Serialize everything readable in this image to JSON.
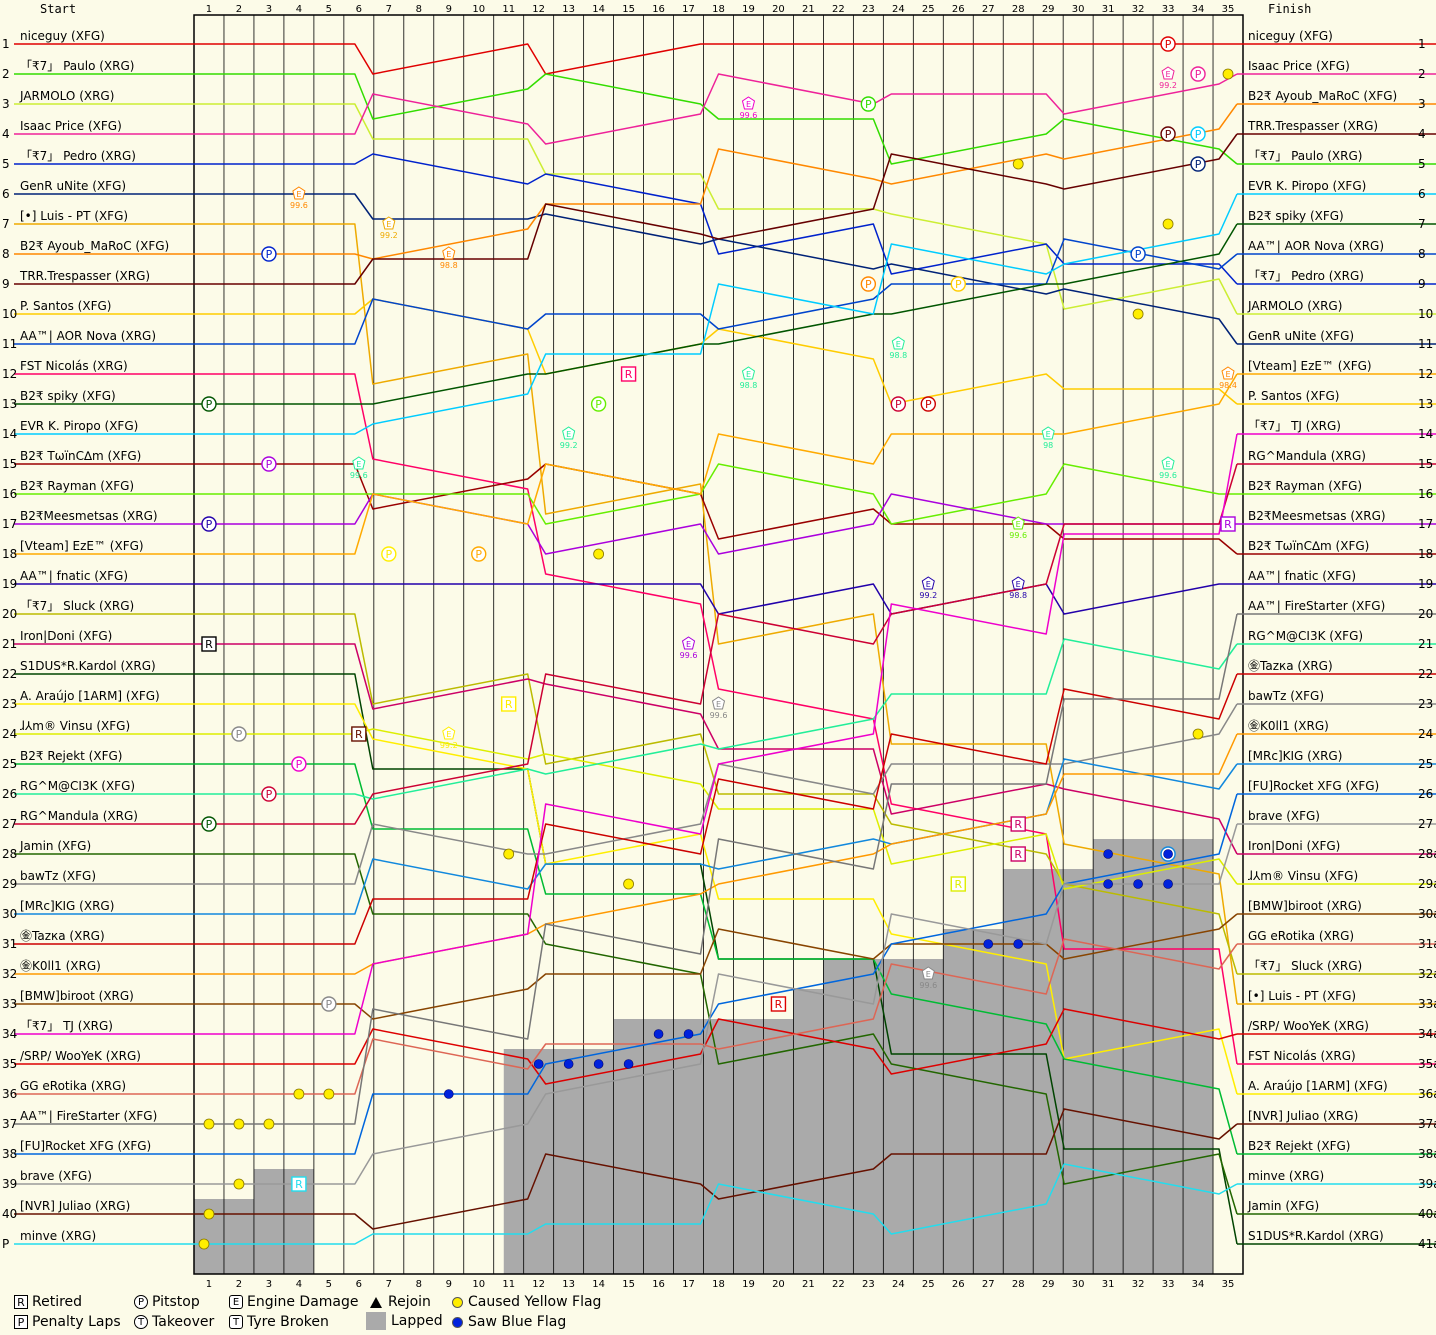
{
  "header": {
    "start_label": "Start",
    "finish_label": "Finish"
  },
  "chart_data": {
    "type": "line",
    "title": "",
    "xlabel": "",
    "ylabel": "",
    "laps": [
      1,
      2,
      3,
      4,
      5,
      6,
      7,
      8,
      9,
      10,
      11,
      12,
      13,
      14,
      15,
      16,
      17,
      18,
      19,
      20,
      21,
      22,
      23,
      24,
      25,
      26,
      27,
      28,
      29,
      30,
      31,
      32,
      33,
      34,
      35
    ],
    "positions": [
      "1",
      "2",
      "3",
      "4",
      "5",
      "6",
      "7",
      "8",
      "9",
      "10",
      "11",
      "12",
      "13",
      "14",
      "15",
      "16",
      "17",
      "18",
      "19",
      "20",
      "21",
      "22",
      "23",
      "24",
      "25",
      "26",
      "27",
      "28",
      "29",
      "30",
      "31",
      "32",
      "33",
      "34",
      "35",
      "36",
      "37",
      "38",
      "39",
      "40",
      "P"
    ],
    "finish_positions": [
      "1",
      "2",
      "3",
      "4",
      "5",
      "6",
      "7",
      "8",
      "9",
      "10",
      "11",
      "12",
      "13",
      "14",
      "15",
      "16",
      "17",
      "18",
      "19",
      "20",
      "21",
      "22",
      "23",
      "24",
      "25",
      "26",
      "27",
      "28a",
      "29a",
      "30a",
      "31a",
      "32a",
      "33a",
      "34a",
      "35a",
      "36a",
      "37a",
      "38a",
      "39a",
      "40a",
      "41a"
    ],
    "ylim": [
      1,
      41
    ],
    "start_grid": [
      {
        "name": "niceguy (XFG)",
        "color": "#e00000"
      },
      {
        "name": "「₹7」 Paulo (XRG)",
        "color": "#33dd00"
      },
      {
        "name": "JARMOLO (XRG)",
        "color": "#ccee33"
      },
      {
        "name": "Isaac Price (XFG)",
        "color": "#ee2299"
      },
      {
        "name": "「₹7」 Pedro (XRG)",
        "color": "#0022cc"
      },
      {
        "name": "GenR uNite (XFG)",
        "color": "#002277"
      },
      {
        "name": "[•] Luis - PT (XFG)",
        "color": "#eeaa00"
      },
      {
        "name": "B2₹ Ayoub_MaRoC (XFG)",
        "color": "#ff8800"
      },
      {
        "name": "TRR.Trespasser (XRG)",
        "color": "#660000"
      },
      {
        "name": "P. Santos (XFG)",
        "color": "#ffcc00"
      },
      {
        "name": "AA™| AOR Nova (XRG)",
        "color": "#0044cc"
      },
      {
        "name": "FST Nicolás (XRG)",
        "color": "#ff0066"
      },
      {
        "name": "B2₹ spiky (XFG)",
        "color": "#005500"
      },
      {
        "name": "EVR K. Piropo (XFG)",
        "color": "#00ccff"
      },
      {
        "name": "B2₹ TωïnC∆m (XFG)",
        "color": "#990000"
      },
      {
        "name": "B2₹ Rayman (XFG)",
        "color": "#66ee00"
      },
      {
        "name": "B2₹Meesmetsas (XRG)",
        "color": "#aa00dd"
      },
      {
        "name": "[Vteam] EzE™ (XFG)",
        "color": "#ffaa00"
      },
      {
        "name": "AA™| fnatic (XFG)",
        "color": "#2200aa"
      },
      {
        "name": "「₹7」 Sluck (XRG)",
        "color": "#bbbb00"
      },
      {
        "name": "Iron|Doni (XFG)",
        "color": "#cc0066"
      },
      {
        "name": "S1DUS*R.Kardol (XRG)",
        "color": "#004400"
      },
      {
        "name": "A. Araújo [1ARM] (XFG)",
        "color": "#ffee00"
      },
      {
        "name": "ɺ⅄m® Vinsu (XFG)",
        "color": "#ddee00"
      },
      {
        "name": "B2₹ Rejekt (XFG)",
        "color": "#00bb33"
      },
      {
        "name": "RG^M@CI3K (XFG)",
        "color": "#22ee99"
      },
      {
        "name": "RG^Mandula (XRG)",
        "color": "#cc0033"
      },
      {
        "name": "Jamin (XFG)",
        "color": "#226600"
      },
      {
        "name": "bawTz (XFG)",
        "color": "#888888"
      },
      {
        "name": "[MRc]KIG (XRG)",
        "color": "#1188dd"
      },
      {
        "name": "㊎Tazкa (XRG)",
        "color": "#cc0000"
      },
      {
        "name": "㊎K0ll1 (XRG)",
        "color": "#ff9900"
      },
      {
        "name": "[BMW]biroot (XRG)",
        "color": "#884400"
      },
      {
        "name": "「₹7」 TJ (XRG)",
        "color": "#ee00cc"
      },
      {
        "name": "/SRP/ WooYeK (XRG)",
        "color": "#dd0000"
      },
      {
        "name": "GG eRotika (XRG)",
        "color": "#dd6655"
      },
      {
        "name": "AA™| FireStarter (XFG)",
        "color": "#777777"
      },
      {
        "name": "[FU]Rocket XFG (XFG)",
        "color": "#0066dd"
      },
      {
        "name": "brave (XFG)",
        "color": "#999999"
      },
      {
        "name": "[NVR] Juliao (XRG)",
        "color": "#661100"
      },
      {
        "name": "minve (XRG)",
        "color": "#22ddee"
      }
    ],
    "finish_order": [
      {
        "name": "niceguy (XFG)",
        "color": "#e00000"
      },
      {
        "name": "Isaac Price (XFG)",
        "color": "#ee2299"
      },
      {
        "name": "B2₹ Ayoub_MaRoC (XFG)",
        "color": "#ff8800"
      },
      {
        "name": "TRR.Trespasser (XRG)",
        "color": "#660000"
      },
      {
        "name": "「₹7」 Paulo (XRG)",
        "color": "#33dd00"
      },
      {
        "name": "EVR K. Piropo (XFG)",
        "color": "#00ccff"
      },
      {
        "name": "B2₹ spiky (XFG)",
        "color": "#005500"
      },
      {
        "name": "AA™| AOR Nova (XRG)",
        "color": "#0044cc"
      },
      {
        "name": "「₹7」 Pedro (XRG)",
        "color": "#0022cc"
      },
      {
        "name": "JARMOLO (XRG)",
        "color": "#ccee33"
      },
      {
        "name": "GenR uNite (XFG)",
        "color": "#002277"
      },
      {
        "name": "[Vteam] EzE™ (XFG)",
        "color": "#ffaa00"
      },
      {
        "name": "P. Santos (XFG)",
        "color": "#ffcc00"
      },
      {
        "name": "「₹7」 TJ (XRG)",
        "color": "#ee00cc"
      },
      {
        "name": "RG^Mandula (XRG)",
        "color": "#cc0033"
      },
      {
        "name": "B2₹ Rayman (XFG)",
        "color": "#66ee00"
      },
      {
        "name": "B2₹Meesmetsas (XRG)",
        "color": "#aa00dd"
      },
      {
        "name": "B2₹ TωïnC∆m (XFG)",
        "color": "#990000"
      },
      {
        "name": "AA™| fnatic (XFG)",
        "color": "#2200aa"
      },
      {
        "name": "AA™| FireStarter (XFG)",
        "color": "#777777"
      },
      {
        "name": "RG^M@CI3K (XFG)",
        "color": "#22ee99"
      },
      {
        "name": "㊎Tazкa (XRG)",
        "color": "#cc0000"
      },
      {
        "name": "bawTz (XFG)",
        "color": "#888888"
      },
      {
        "name": "㊎K0ll1 (XRG)",
        "color": "#ff9900"
      },
      {
        "name": "[MRc]KIG (XRG)",
        "color": "#1188dd"
      },
      {
        "name": "[FU]Rocket XFG (XFG)",
        "color": "#0066dd"
      },
      {
        "name": "brave (XFG)",
        "color": "#999999"
      },
      {
        "name": "Iron|Doni (XFG)",
        "color": "#cc0066"
      },
      {
        "name": "ɺ⅄m® Vinsu (XFG)",
        "color": "#ddee00"
      },
      {
        "name": "[BMW]biroot (XRG)",
        "color": "#884400"
      },
      {
        "name": "GG eRotika (XRG)",
        "color": "#dd6655"
      },
      {
        "name": "「₹7」 Sluck (XRG)",
        "color": "#bbbb00"
      },
      {
        "name": "[•] Luis - PT (XFG)",
        "color": "#eeaa00"
      },
      {
        "name": "/SRP/ WooYeK (XRG)",
        "color": "#dd0000"
      },
      {
        "name": "FST Nicolás (XRG)",
        "color": "#ff0066"
      },
      {
        "name": "A. Araújo [1ARM] (XFG)",
        "color": "#ffee00"
      },
      {
        "name": "[NVR] Juliao (XRG)",
        "color": "#661100"
      },
      {
        "name": "B2₹ Rejekt (XFG)",
        "color": "#00bb33"
      },
      {
        "name": "minve (XRG)",
        "color": "#22ddee"
      },
      {
        "name": "Jamin (XFG)",
        "color": "#226600"
      },
      {
        "name": "S1DUS*R.Kardol (XRG)",
        "color": "#004400"
      }
    ],
    "lapped_profile": [
      {
        "lap": 1,
        "first_lapped_position": 40
      },
      {
        "lap": 2,
        "first_lapped_position": 40
      },
      {
        "lap": 3,
        "first_lapped_position": 39
      },
      {
        "lap": 4,
        "first_lapped_position": 39
      },
      {
        "lap": 9,
        "first_lapped_position": 36
      },
      {
        "lap": 10,
        "first_lapped_position": 36
      },
      {
        "lap": 11,
        "first_lapped_position": 35
      },
      {
        "lap": 14,
        "first_lapped_position": 35
      },
      {
        "lap": 15,
        "first_lapped_position": 34
      },
      {
        "lap": 20,
        "first_lapped_position": 34
      },
      {
        "lap": 21,
        "first_lapped_position": 33
      },
      {
        "lap": 22,
        "first_lapped_position": 32
      },
      {
        "lap": 25,
        "first_lapped_position": 32
      },
      {
        "lap": 26,
        "first_lapped_position": 31
      },
      {
        "lap": 27,
        "first_lapped_position": 31
      },
      {
        "lap": 28,
        "first_lapped_position": 29
      },
      {
        "lap": 30,
        "first_lapped_position": 29
      },
      {
        "lap": 31,
        "first_lapped_position": 28
      },
      {
        "lap": 34,
        "first_lapped_position": 28
      }
    ],
    "events": [
      {
        "type": "pitstop",
        "lap": 33,
        "pos": 1,
        "color": "#e00000"
      },
      {
        "type": "pitstop",
        "lap": 34,
        "pos": 2,
        "color": "#ee2299"
      },
      {
        "type": "pitstop",
        "lap": 23,
        "pos": 3,
        "color": "#33dd00"
      },
      {
        "type": "pitstop",
        "lap": 33,
        "pos": 4,
        "color": "#660000"
      },
      {
        "type": "pitstop",
        "lap": 34,
        "pos": 4,
        "color": "#00ccff"
      },
      {
        "type": "pitstop",
        "lap": 34,
        "pos": 5,
        "color": "#002277"
      },
      {
        "type": "pitstop",
        "lap": 3,
        "pos": 8,
        "color": "#0022cc"
      },
      {
        "type": "pitstop",
        "lap": 32,
        "pos": 8,
        "color": "#0044cc"
      },
      {
        "type": "pitstop",
        "lap": 23,
        "pos": 9,
        "color": "#ff8800"
      },
      {
        "type": "pitstop",
        "lap": 26,
        "pos": 9,
        "color": "#ffcc00"
      },
      {
        "type": "pitstop",
        "lap": 1,
        "pos": 13,
        "color": "#005500"
      },
      {
        "type": "pitstop",
        "lap": 14,
        "pos": 13,
        "color": "#66ee00"
      },
      {
        "type": "pitstop",
        "lap": 24,
        "pos": 13,
        "color": "#cc0033"
      },
      {
        "type": "pitstop",
        "lap": 25,
        "pos": 13,
        "color": "#cc0000"
      },
      {
        "type": "pitstop",
        "lap": 3,
        "pos": 15,
        "color": "#aa00dd"
      },
      {
        "type": "pitstop",
        "lap": 1,
        "pos": 17,
        "color": "#2200aa"
      },
      {
        "type": "pitstop",
        "lap": 7,
        "pos": 18,
        "color": "#ffee00"
      },
      {
        "type": "pitstop",
        "lap": 10,
        "pos": 18,
        "color": "#ffaa00"
      },
      {
        "type": "pitstop",
        "lap": 2,
        "pos": 24,
        "color": "#888888"
      },
      {
        "type": "pitstop",
        "lap": 4,
        "pos": 25,
        "color": "#ee00cc"
      },
      {
        "type": "pitstop",
        "lap": 3,
        "pos": 26,
        "color": "#cc0033"
      },
      {
        "type": "pitstop",
        "lap": 1,
        "pos": 27,
        "color": "#005500"
      },
      {
        "type": "pitstop",
        "lap": 5,
        "pos": 33,
        "color": "#888888"
      },
      {
        "type": "pitstop",
        "lap": 33,
        "pos": 28,
        "color": "#1188dd"
      },
      {
        "type": "retired",
        "lap": 1,
        "pos": 21,
        "color": "#000000"
      },
      {
        "type": "retired",
        "lap": 15,
        "pos": 12,
        "color": "#ff0066"
      },
      {
        "type": "retired",
        "lap": 6,
        "pos": 24,
        "color": "#661100"
      },
      {
        "type": "retired",
        "lap": 11,
        "pos": 23,
        "color": "#ffee00"
      },
      {
        "type": "retired",
        "lap": 20,
        "pos": 33,
        "color": "#dd0000"
      },
      {
        "type": "retired",
        "lap": 28,
        "pos": 27,
        "color": "#cc0066"
      },
      {
        "type": "retired",
        "lap": 28,
        "pos": 28,
        "color": "#cc0066"
      },
      {
        "type": "retired",
        "lap": 26,
        "pos": 29,
        "color": "#ddee00"
      },
      {
        "type": "retired",
        "lap": 35,
        "pos": 17,
        "color": "#aa00dd"
      },
      {
        "type": "retired",
        "lap": 4,
        "pos": 39,
        "color": "#22ddee"
      },
      {
        "type": "engine",
        "lap": 4,
        "pos": 6,
        "label": "99.6",
        "color": "#ff8800"
      },
      {
        "type": "engine",
        "lap": 7,
        "pos": 7,
        "label": "99.2",
        "color": "#eeaa00"
      },
      {
        "type": "engine",
        "lap": 9,
        "pos": 8,
        "label": "98.8",
        "color": "#ff8800"
      },
      {
        "type": "engine",
        "lap": 19,
        "pos": 3,
        "label": "99.6",
        "color": "#ee00cc"
      },
      {
        "type": "engine",
        "lap": 33,
        "pos": 2,
        "label": "99.2",
        "color": "#ee2299"
      },
      {
        "type": "engine",
        "lap": 24,
        "pos": 11,
        "label": "98.8",
        "color": "#22ee99"
      },
      {
        "type": "engine",
        "lap": 19,
        "pos": 12,
        "label": "98.8",
        "color": "#22ee99"
      },
      {
        "type": "engine",
        "lap": 35,
        "pos": 12,
        "label": "98.4",
        "color": "#ff8800"
      },
      {
        "type": "engine",
        "lap": 13,
        "pos": 14,
        "label": "99.2",
        "color": "#22ee99"
      },
      {
        "type": "engine",
        "lap": 29,
        "pos": 14,
        "label": "98",
        "color": "#22ee99"
      },
      {
        "type": "engine",
        "lap": 6,
        "pos": 15,
        "label": "99.6",
        "color": "#22ee99"
      },
      {
        "type": "engine",
        "lap": 33,
        "pos": 15,
        "label": "99.6",
        "color": "#22ee99"
      },
      {
        "type": "engine",
        "lap": 28,
        "pos": 17,
        "label": "99.6",
        "color": "#66ee00"
      },
      {
        "type": "engine",
        "lap": 25,
        "pos": 19,
        "label": "99.2",
        "color": "#2200aa"
      },
      {
        "type": "engine",
        "lap": 28,
        "pos": 19,
        "label": "98.8",
        "color": "#2200aa"
      },
      {
        "type": "engine",
        "lap": 17,
        "pos": 21,
        "label": "99.6",
        "color": "#aa00dd"
      },
      {
        "type": "engine",
        "lap": 18,
        "pos": 23,
        "label": "99.6",
        "color": "#888888"
      },
      {
        "type": "engine",
        "lap": 9,
        "pos": 24,
        "label": "99.2",
        "color": "#ffee00"
      },
      {
        "type": "engine",
        "lap": 25,
        "pos": 32,
        "label": "99.6",
        "color": "#888888"
      },
      {
        "type": "yellow",
        "lap": 28,
        "pos": 5
      },
      {
        "type": "yellow",
        "lap": 33,
        "pos": 7
      },
      {
        "type": "yellow",
        "lap": 32,
        "pos": 10
      },
      {
        "type": "yellow",
        "lap": 35,
        "pos": 2
      },
      {
        "type": "yellow",
        "lap": 14,
        "pos": 18
      },
      {
        "type": "yellow",
        "lap": 11,
        "pos": 28
      },
      {
        "type": "yellow",
        "lap": 15,
        "pos": 29
      },
      {
        "type": "yellow",
        "lap": 4,
        "pos": 36
      },
      {
        "type": "yellow",
        "lap": 5,
        "pos": 36
      },
      {
        "type": "yellow",
        "lap": 1,
        "pos": 37
      },
      {
        "type": "yellow",
        "lap": 2,
        "pos": 37
      },
      {
        "type": "yellow",
        "lap": 3,
        "pos": 37
      },
      {
        "type": "yellow",
        "lap": 2,
        "pos": 39
      },
      {
        "type": "yellow",
        "lap": 1,
        "pos": 40
      },
      {
        "type": "yellow",
        "lap": 34,
        "pos": 24
      },
      {
        "type": "yellow",
        "lap": 0,
        "pos": 41
      },
      {
        "type": "blue",
        "lap": 9,
        "pos": 36
      },
      {
        "type": "blue",
        "lap": 12,
        "pos": 35
      },
      {
        "type": "blue",
        "lap": 13,
        "pos": 35
      },
      {
        "type": "blue",
        "lap": 14,
        "pos": 35
      },
      {
        "type": "blue",
        "lap": 15,
        "pos": 35
      },
      {
        "type": "blue",
        "lap": 16,
        "pos": 34
      },
      {
        "type": "blue",
        "lap": 17,
        "pos": 34
      },
      {
        "type": "blue",
        "lap": 27,
        "pos": 31
      },
      {
        "type": "blue",
        "lap": 28,
        "pos": 31
      },
      {
        "type": "blue",
        "lap": 31,
        "pos": 28
      },
      {
        "type": "blue",
        "lap": 33,
        "pos": 28
      },
      {
        "type": "blue",
        "lap": 31,
        "pos": 29
      },
      {
        "type": "blue",
        "lap": 32,
        "pos": 29
      },
      {
        "type": "blue",
        "lap": 33,
        "pos": 29
      }
    ]
  },
  "legend": {
    "retired": {
      "symbol": "R",
      "label": "Retired"
    },
    "penalty": {
      "symbol": "P",
      "label": "Penalty Laps"
    },
    "pitstop": {
      "symbol": "P",
      "label": "Pitstop"
    },
    "takeover": {
      "symbol": "T",
      "label": "Takeover"
    },
    "engine": {
      "symbol": "E",
      "label": "Engine Damage"
    },
    "tyre": {
      "symbol": "T",
      "label": "Tyre Broken"
    },
    "rejoin": {
      "label": "Rejoin"
    },
    "lapped": {
      "label": "Lapped"
    },
    "yellow": {
      "label": "Caused Yellow Flag",
      "color": "#ffee00"
    },
    "blue": {
      "label": "Saw Blue Flag",
      "color": "#0022dd"
    }
  }
}
